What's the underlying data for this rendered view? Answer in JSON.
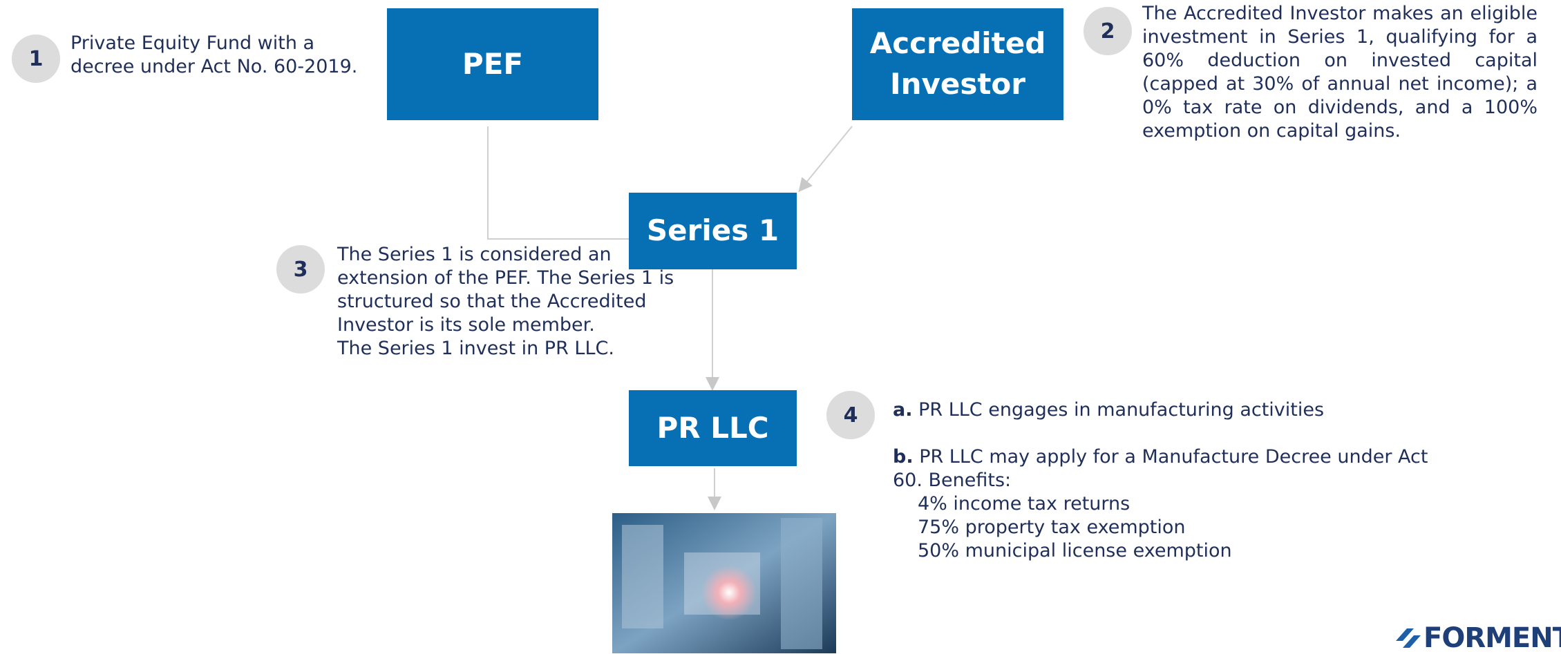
{
  "nodes": [
    {
      "label": "PEF"
    },
    {
      "label": "Accredited Investor"
    },
    {
      "label": "Series 1"
    },
    {
      "label": "PR LLC"
    }
  ],
  "notes": [
    {
      "number": "1",
      "text": "Private Equity Fund with a decree under Act No. 60-2019."
    },
    {
      "number": "2",
      "text": "The Accredited Investor makes an eligible investment in Series 1, qualifying for a 60% deduction on invested capital (capped at 30% of annual net income); a 0% tax rate on dividends, and a 100% exemption on capital gains."
    },
    {
      "number": "3",
      "lines": [
        "The Series 1 is considered an extension of the PEF. The Series 1 is structured so that the Accredited Investor is its sole member.",
        "The Series 1 invest in PR LLC."
      ]
    },
    {
      "number": "4",
      "items": [
        {
          "marker": "a.",
          "text": "PR LLC engages in manufacturing activities"
        },
        {
          "marker": "b.",
          "text": "PR LLC may apply for a Manufacture Decree under Act 60. Benefits:",
          "benefits": [
            "4% income tax returns",
            "75% property tax exemption",
            "50% municipal license exemption"
          ]
        }
      ]
    }
  ],
  "logo": "FORMENT"
}
